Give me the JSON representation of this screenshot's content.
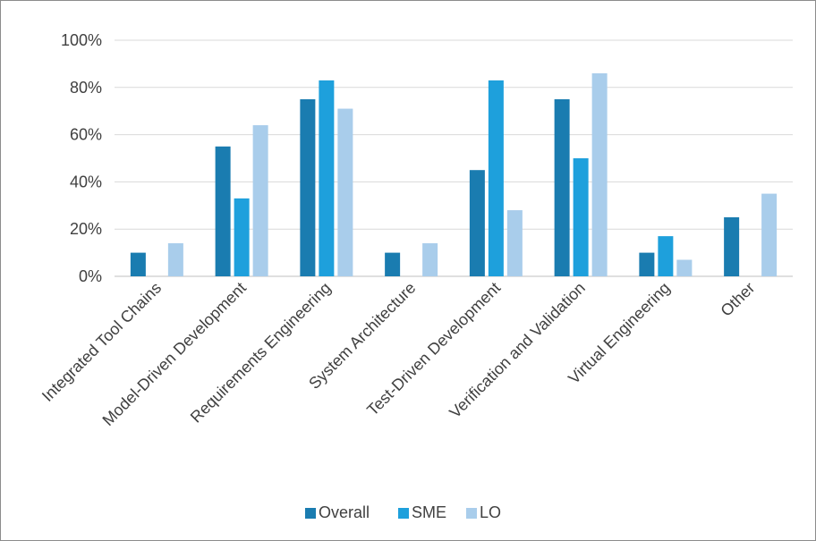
{
  "chart_data": {
    "type": "bar",
    "title": "",
    "xlabel": "",
    "ylabel": "",
    "ylim": [
      0,
      100
    ],
    "yticks": [
      "0%",
      "20%",
      "40%",
      "60%",
      "80%",
      "100%"
    ],
    "grid": true,
    "legend_position": "bottom",
    "categories": [
      "Integrated Tool Chains",
      "Model-Driven Development",
      "Requirements Engineering",
      "System Architecture",
      "Test-Driven Development",
      "Verification and Validation",
      "Virtual Engineering",
      "Other"
    ],
    "series": [
      {
        "name": "Overall",
        "color": "#1a7cb0",
        "values": [
          10,
          55,
          75,
          10,
          45,
          75,
          10,
          25
        ]
      },
      {
        "name": "SME",
        "color": "#1ea0dc",
        "values": [
          0,
          33,
          83,
          0,
          83,
          50,
          17,
          0
        ]
      },
      {
        "name": "LO",
        "color": "#a9cdeb",
        "values": [
          14,
          64,
          71,
          14,
          28,
          86,
          7,
          35
        ]
      }
    ]
  }
}
